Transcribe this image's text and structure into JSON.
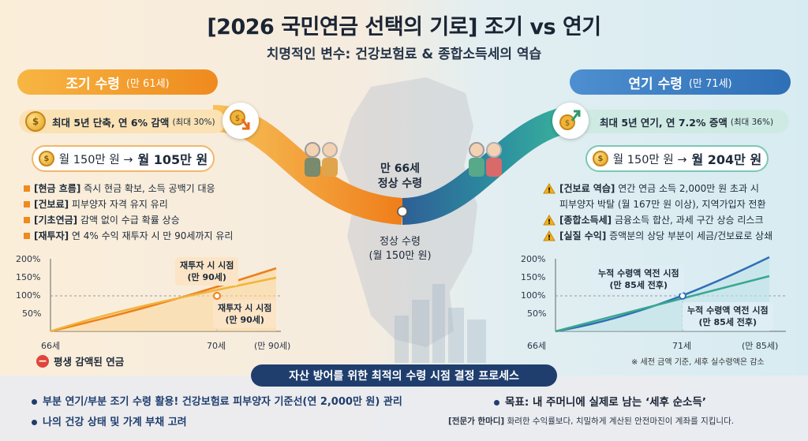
{
  "header": {
    "title": "[2026 국민연금 선택의 기로] 조기 vs 연기",
    "subtitle": "치명적인 변수: 건강보험료 & 종합소득세의 역습"
  },
  "early": {
    "heading": "조기 수령",
    "heading_sub": "(만 61세)",
    "band_text": "최대 5년 단축, 연 6% 감액",
    "band_note": "(최대 30%)",
    "amount_pre": "월 150만 원 →",
    "amount_post": "월 105만 원",
    "bullets": [
      {
        "tag": "[현금 흐름]",
        "text": "즉시 현금 확보, 소득 공백기 대응"
      },
      {
        "tag": "[건보료]",
        "text": "피부양자 자격 유지 유리"
      },
      {
        "tag": "[기초연금]",
        "text": "감액 없이 수급 확률 상승"
      },
      {
        "tag": "[재투자]",
        "text": "연 4% 수익 재투자 시 만 90세까지 유리"
      }
    ],
    "chart": {
      "y_ticks": [
        "200%",
        "150%",
        "100%",
        "50%"
      ],
      "x_ticks": [
        "66세",
        "70세",
        "(만 90세)"
      ],
      "callout_top": "재투자 시 시점\n(만 90세)",
      "callout_bottom": "재투자 시 시점\n(만 90세)",
      "legend": "평생 감액된 연금"
    }
  },
  "late": {
    "heading": "연기 수령",
    "heading_sub": "(만 71세)",
    "band_text": "최대 5년 연기, 연 7.2% 증액",
    "band_note": "(최대 36%)",
    "amount_pre": "월 150만 원 →",
    "amount_post": "월 204만 원",
    "bullets": [
      {
        "tag": "[건보료 역습]",
        "text": "연간 연금 소득 2,000만 원 초과 시"
      },
      {
        "tag": "",
        "text": "피부양자 박탈 (월 167만 원 이상), 지역가입자 전환"
      },
      {
        "tag": "[종합소득세]",
        "text": "금융소득 합산, 과세 구간 상승 리스크"
      },
      {
        "tag": "[실질 수익]",
        "text": "증액분의 상당 부분이 세금/건보료로 상쇄"
      }
    ],
    "chart": {
      "y_ticks": [
        "200%",
        "150%",
        "100%",
        "50%"
      ],
      "x_ticks": [
        "66세",
        "71세",
        "(만 85세)"
      ],
      "callout_top": "누적 수령액 역전 시점\n(만 85세 전후)",
      "callout_bottom": "누적 수령액 역전 시점\n(만 85세 전후)",
      "footnote": "※ 세전 금액 기준, 세후 실수령액은 감소"
    }
  },
  "middle": {
    "line1": "만 66세",
    "line2": "정상 수령",
    "line3": "정상 수령",
    "line4": "(월 150만 원)"
  },
  "bottom": {
    "banner": "자산 방어를 위한 최적의 수령 시점 결정 프로세스",
    "left1": "부분 연기/부분 조기 수령 활용! 건강보험료 피부양자 기준선(연 2,000만 원) 관리",
    "left2": "나의 건강 상태 및 가계 부채 고려",
    "goal_label": "목표: 내 주머니에 실제로 남는 ‘세후 순소득’",
    "expert_tag": "[전문가 한마디]",
    "expert_text": "화려한 수익률보다, 치밀하게 계산된 안전마진이 계좌를 지킵니다."
  },
  "colors": {
    "early": "#ef8a1e",
    "late": "#2f6fb6",
    "teal": "#3aa88f",
    "navy": "#1f3e6e"
  }
}
